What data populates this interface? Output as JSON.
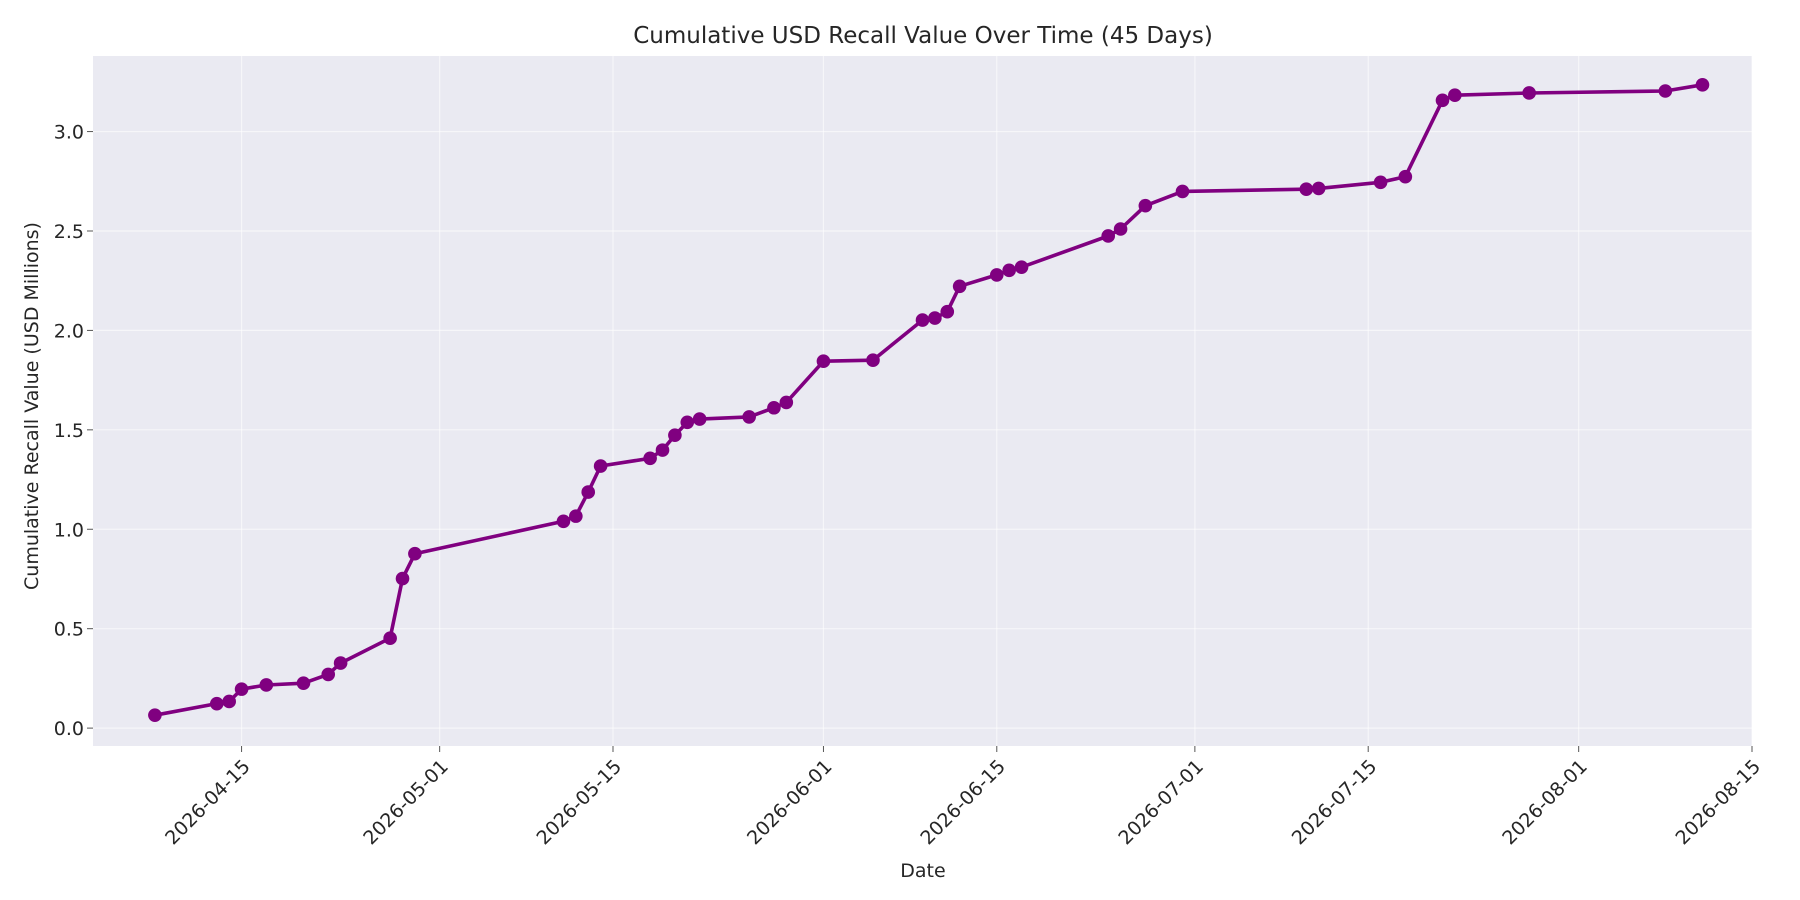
{
  "chart_data": {
    "type": "line",
    "title": "Cumulative USD Recall Value Over Time (45 Days)",
    "xlabel": "Date",
    "ylabel": "Cumulative Recall Value (USD Millions)",
    "x_type": "date",
    "xlim": [
      "2026-04-03",
      "2026-08-15"
    ],
    "ylim": [
      -0.09,
      3.38
    ],
    "x_ticks": [
      "2026-04-15",
      "2026-05-01",
      "2026-05-15",
      "2026-06-01",
      "2026-06-15",
      "2026-07-01",
      "2026-07-15",
      "2026-08-01",
      "2026-08-15"
    ],
    "y_ticks": [
      0.0,
      0.5,
      1.0,
      1.5,
      2.0,
      2.5,
      3.0
    ],
    "y_tick_labels": [
      "0.0",
      "0.5",
      "1.0",
      "1.5",
      "2.0",
      "2.5",
      "3.0"
    ],
    "grid": true,
    "legend": "none",
    "colors": {
      "series": "#800080",
      "plot_background": "#eaeaf2",
      "grid": "#ffffff"
    },
    "series": [
      {
        "x": [
          "2026-04-08",
          "2026-04-13",
          "2026-04-14",
          "2026-04-15",
          "2026-04-17",
          "2026-04-20",
          "2026-04-22",
          "2026-04-23",
          "2026-04-27",
          "2026-04-28",
          "2026-04-29",
          "2026-05-11",
          "2026-05-12",
          "2026-05-13",
          "2026-05-14",
          "2026-05-18",
          "2026-05-19",
          "2026-05-20",
          "2026-05-21",
          "2026-05-22",
          "2026-05-26",
          "2026-05-28",
          "2026-05-29",
          "2026-06-01",
          "2026-06-05",
          "2026-06-09",
          "2026-06-10",
          "2026-06-11",
          "2026-06-12",
          "2026-06-15",
          "2026-06-16",
          "2026-06-17",
          "2026-06-24",
          "2026-06-25",
          "2026-06-27",
          "2026-06-30",
          "2026-07-10",
          "2026-07-11",
          "2026-07-16",
          "2026-07-18",
          "2026-07-21",
          "2026-07-22",
          "2026-07-28",
          "2026-08-08",
          "2026-08-11"
        ],
        "values": [
          0.065,
          0.123,
          0.134,
          0.196,
          0.217,
          0.226,
          0.27,
          0.327,
          0.452,
          0.752,
          0.877,
          1.04,
          1.066,
          1.187,
          1.318,
          1.357,
          1.398,
          1.473,
          1.538,
          1.554,
          1.565,
          1.611,
          1.638,
          1.845,
          1.85,
          2.052,
          2.062,
          2.094,
          2.222,
          2.279,
          2.302,
          2.318,
          2.475,
          2.51,
          2.627,
          2.699,
          2.71,
          2.714,
          2.745,
          2.773,
          3.157,
          3.183,
          3.194,
          3.204,
          3.235
        ]
      }
    ]
  }
}
